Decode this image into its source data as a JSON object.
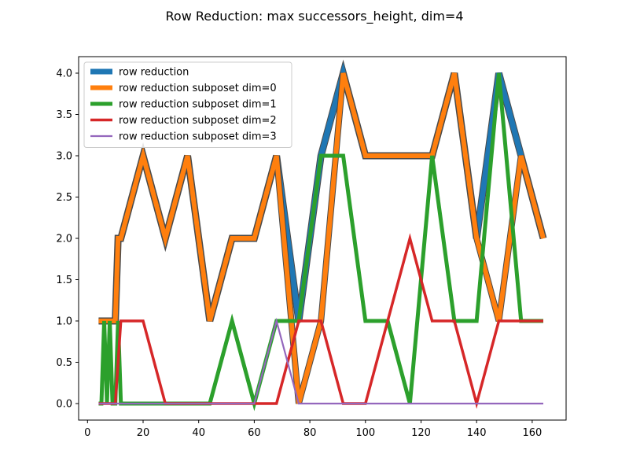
{
  "chart_data": {
    "type": "line",
    "title": "Row Reduction: max successors_height, dim=4",
    "xlabel": "",
    "ylabel": "",
    "xlim": [
      -3.2,
      172.2
    ],
    "ylim": [
      -0.2,
      4.2
    ],
    "xticks": [
      0,
      20,
      40,
      60,
      80,
      100,
      120,
      140,
      160
    ],
    "yticks": [
      0.0,
      0.5,
      1.0,
      1.5,
      2.0,
      2.5,
      3.0,
      3.5,
      4.0
    ],
    "xtick_labels": [
      "0",
      "20",
      "40",
      "60",
      "80",
      "100",
      "120",
      "140",
      "160"
    ],
    "ytick_labels": [
      "0.0",
      "0.5",
      "1.0",
      "1.5",
      "2.0",
      "2.5",
      "3.0",
      "3.5",
      "4.0"
    ],
    "grid": false,
    "legend_position": "upper-left",
    "series": [
      {
        "name": "row reduction",
        "color": "#1f77b4",
        "x": [
          4,
          6,
          8,
          10,
          11,
          12,
          20,
          28,
          36,
          44,
          52,
          60,
          68,
          76,
          84,
          92,
          100,
          108,
          116,
          124,
          132,
          140,
          148,
          156,
          164
        ],
        "y": [
          1,
          1,
          1,
          1,
          2,
          2,
          3,
          2,
          3,
          1,
          2,
          2,
          3,
          1,
          3,
          4,
          3,
          3,
          3,
          3,
          4,
          2,
          4,
          3,
          2
        ]
      },
      {
        "name": "row reduction subposet dim=0",
        "color": "#ff7f0e",
        "x": [
          4,
          6,
          8,
          10,
          11,
          12,
          20,
          28,
          36,
          44,
          52,
          60,
          68,
          76,
          84,
          92,
          100,
          108,
          116,
          124,
          132,
          140,
          148,
          156,
          164
        ],
        "y": [
          1,
          1,
          1,
          1,
          2,
          2,
          3,
          2,
          3,
          1,
          2,
          2,
          3,
          0,
          1,
          4,
          3,
          3,
          3,
          3,
          4,
          2,
          1,
          3,
          2
        ]
      },
      {
        "name": "row reduction subposet dim=1",
        "color": "#2ca02c",
        "x": [
          4,
          5,
          6,
          7,
          8,
          9,
          10,
          11,
          12,
          20,
          28,
          36,
          44,
          52,
          60,
          68,
          76,
          84,
          92,
          100,
          108,
          116,
          124,
          132,
          140,
          148,
          156,
          164
        ],
        "y": [
          0,
          0,
          1,
          0,
          1,
          0,
          0,
          1,
          0,
          0,
          0,
          0,
          0,
          1,
          0,
          1,
          1,
          3,
          3,
          1,
          1,
          0,
          3,
          1,
          1,
          4,
          1,
          1
        ]
      },
      {
        "name": "row reduction subposet dim=2",
        "color": "#d62728",
        "x": [
          4,
          8,
          10,
          12,
          20,
          28,
          36,
          44,
          52,
          60,
          68,
          76,
          84,
          92,
          100,
          108,
          116,
          124,
          132,
          140,
          148,
          156,
          164
        ],
        "y": [
          0,
          0,
          0,
          1,
          1,
          0,
          0,
          0,
          0,
          0,
          0,
          1,
          1,
          0,
          0,
          1,
          2,
          1,
          1,
          0,
          1,
          1,
          1
        ]
      },
      {
        "name": "row reduction subposet dim=3",
        "color": "#9467bd",
        "x": [
          4,
          8,
          10,
          12,
          20,
          28,
          36,
          44,
          52,
          60,
          68,
          76,
          84,
          92,
          100,
          108,
          116,
          124,
          132,
          140,
          148,
          156,
          164
        ],
        "y": [
          0,
          0,
          0,
          0,
          0,
          0,
          0,
          0,
          0,
          0,
          1,
          0,
          0,
          0,
          0,
          0,
          0,
          0,
          0,
          0,
          0,
          0,
          0
        ]
      }
    ]
  }
}
